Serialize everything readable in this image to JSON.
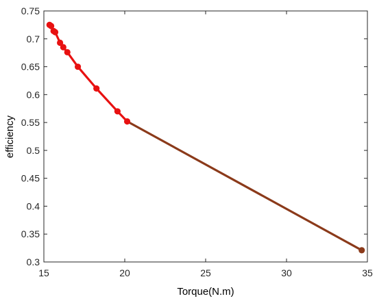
{
  "chart_data": {
    "type": "line",
    "title": "",
    "xlabel": "Torque(N.m)",
    "ylabel": "efficiency",
    "xlim": [
      15,
      35
    ],
    "ylim": [
      0.3,
      0.75
    ],
    "xticks": [
      15,
      20,
      25,
      30,
      35
    ],
    "xtick_labels": [
      "15",
      "20",
      "25",
      "30",
      "35"
    ],
    "yticks": [
      0.3,
      0.35,
      0.4,
      0.45,
      0.5,
      0.55,
      0.6,
      0.65,
      0.7,
      0.75
    ],
    "ytick_labels": [
      "0.3",
      "0.35",
      "0.4",
      "0.45",
      "0.5",
      "0.55",
      "0.6",
      "0.65",
      "0.7",
      "0.75"
    ],
    "grid": false,
    "legend": "none",
    "series": [
      {
        "color": "#e81111",
        "marker": "circle",
        "x": [
          15.35,
          15.45,
          15.6,
          15.7,
          16.0,
          16.2,
          16.45,
          17.1,
          18.25,
          19.55,
          20.15
        ],
        "y": [
          0.725,
          0.723,
          0.714,
          0.712,
          0.693,
          0.685,
          0.676,
          0.65,
          0.611,
          0.57,
          0.552
        ]
      },
      {
        "color": "#8b3a1a",
        "marker": "circle",
        "x": [
          20.15,
          34.65
        ],
        "y": [
          0.552,
          0.321
        ]
      }
    ]
  }
}
